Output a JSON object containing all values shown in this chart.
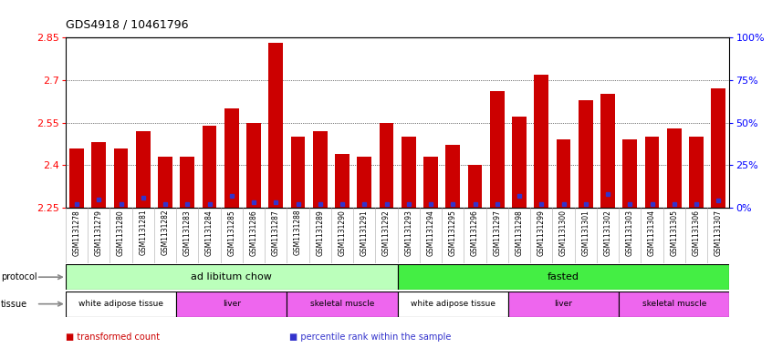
{
  "title": "GDS4918 / 10461796",
  "samples": [
    "GSM1131278",
    "GSM1131279",
    "GSM1131280",
    "GSM1131281",
    "GSM1131282",
    "GSM1131283",
    "GSM1131284",
    "GSM1131285",
    "GSM1131286",
    "GSM1131287",
    "GSM1131288",
    "GSM1131289",
    "GSM1131290",
    "GSM1131291",
    "GSM1131292",
    "GSM1131293",
    "GSM1131294",
    "GSM1131295",
    "GSM1131296",
    "GSM1131297",
    "GSM1131298",
    "GSM1131299",
    "GSM1131300",
    "GSM1131301",
    "GSM1131302",
    "GSM1131303",
    "GSM1131304",
    "GSM1131305",
    "GSM1131306",
    "GSM1131307"
  ],
  "red_values": [
    2.46,
    2.48,
    2.46,
    2.52,
    2.43,
    2.43,
    2.54,
    2.6,
    2.55,
    2.83,
    2.5,
    2.52,
    2.44,
    2.43,
    2.55,
    2.5,
    2.43,
    2.47,
    2.4,
    2.66,
    2.57,
    2.72,
    2.49,
    2.63,
    2.65,
    2.49,
    2.5,
    2.53,
    2.5,
    2.67
  ],
  "blue_percentiles": [
    2,
    5,
    2,
    6,
    2,
    2,
    2,
    7,
    3,
    3,
    2,
    2,
    2,
    2,
    2,
    2,
    2,
    2,
    2,
    2,
    7,
    2,
    2,
    2,
    8,
    2,
    2,
    2,
    2,
    4
  ],
  "ylim_left": [
    2.25,
    2.85
  ],
  "yticks_left": [
    2.25,
    2.4,
    2.55,
    2.7,
    2.85
  ],
  "yticks_right": [
    0,
    25,
    50,
    75,
    100
  ],
  "ytick_labels_right": [
    "0%",
    "25%",
    "50%",
    "75%",
    "100%"
  ],
  "grid_yticks": [
    2.4,
    2.55,
    2.7
  ],
  "bar_color": "#cc0000",
  "dot_color": "#3333cc",
  "xtick_bg": "#e8e8e8",
  "protocol_groups": [
    {
      "label": "ad libitum chow",
      "start": 0,
      "end": 14,
      "color": "#bbffbb"
    },
    {
      "label": "fasted",
      "start": 15,
      "end": 29,
      "color": "#44ee44"
    }
  ],
  "tissue_groups": [
    {
      "label": "white adipose tissue",
      "start": 0,
      "end": 4,
      "color": "#ffffff"
    },
    {
      "label": "liver",
      "start": 5,
      "end": 9,
      "color": "#ee66ee"
    },
    {
      "label": "skeletal muscle",
      "start": 10,
      "end": 14,
      "color": "#ee66ee"
    },
    {
      "label": "white adipose tissue",
      "start": 15,
      "end": 19,
      "color": "#ffffff"
    },
    {
      "label": "liver",
      "start": 20,
      "end": 24,
      "color": "#ee66ee"
    },
    {
      "label": "skeletal muscle",
      "start": 25,
      "end": 29,
      "color": "#ee66ee"
    }
  ],
  "legend": [
    {
      "label": "transformed count",
      "color": "#cc0000"
    },
    {
      "label": "percentile rank within the sample",
      "color": "#3333cc"
    }
  ]
}
